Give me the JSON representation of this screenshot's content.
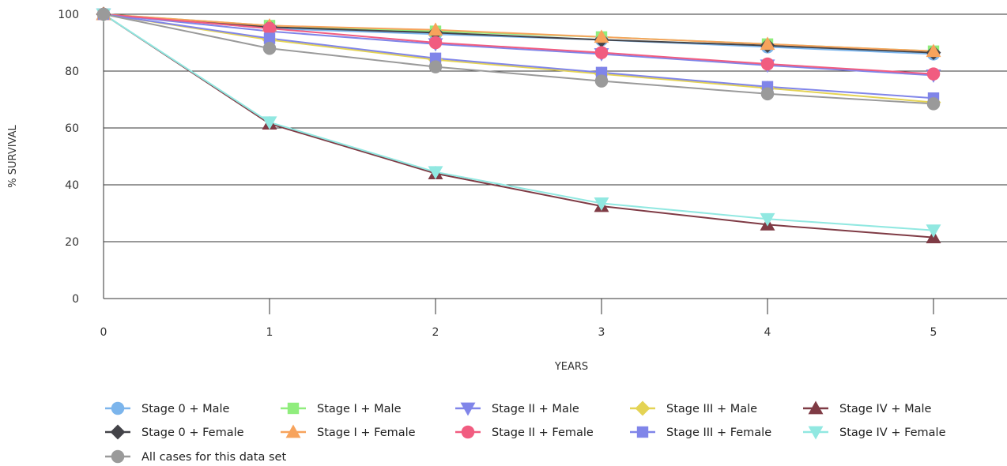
{
  "chart_data": {
    "type": "line",
    "xlabel": "YEARS",
    "ylabel": "% SURVIVAL",
    "xlim": [
      0,
      5.45
    ],
    "ylim": [
      0,
      100
    ],
    "x": [
      0,
      1,
      2,
      3,
      4,
      5
    ],
    "x_ticks": [
      "0",
      "1",
      "2",
      "3",
      "4",
      "5"
    ],
    "y_ticks": [
      "0",
      "20",
      "40",
      "60",
      "80",
      "100"
    ],
    "grid": "horizontal",
    "legend_position": "bottom",
    "series": [
      {
        "name": "Stage 0 + Male",
        "color": "#7cb5ec",
        "marker": "circle",
        "values": [
          100,
          95,
          93,
          91,
          88.5,
          86
        ]
      },
      {
        "name": "Stage I + Male",
        "color": "#90ed7d",
        "marker": "square",
        "values": [
          100,
          96,
          94,
          92,
          89.5,
          87
        ]
      },
      {
        "name": "Stage II + Male",
        "color": "#8085e9",
        "marker": "triangle-down",
        "values": [
          100,
          94,
          89.5,
          86,
          82,
          78.5
        ]
      },
      {
        "name": "Stage III + Male",
        "color": "#e4d354",
        "marker": "diamond",
        "values": [
          100,
          91,
          84,
          79,
          74,
          69
        ]
      },
      {
        "name": "Stage IV + Male",
        "color": "#7f3b45",
        "marker": "triangle",
        "values": [
          100,
          61.5,
          44,
          32.5,
          26,
          21.5
        ]
      },
      {
        "name": "Stage 0 + Female",
        "color": "#434348",
        "marker": "diamond",
        "values": [
          100,
          95.5,
          93.5,
          91,
          89,
          86.5
        ]
      },
      {
        "name": "Stage I + Female",
        "color": "#f7a35c",
        "marker": "triangle",
        "values": [
          100,
          96,
          94.5,
          92,
          89.5,
          87
        ]
      },
      {
        "name": "Stage II + Female",
        "color": "#f15c80",
        "marker": "circle",
        "values": [
          100,
          95,
          90,
          86.5,
          82.5,
          79
        ]
      },
      {
        "name": "Stage III + Female",
        "color": "#8085e9",
        "marker": "square",
        "values": [
          100,
          91.5,
          84.5,
          79.5,
          74.5,
          70.5
        ]
      },
      {
        "name": "Stage IV + Female",
        "color": "#91e8e1",
        "marker": "triangle-down",
        "values": [
          100,
          62,
          44.5,
          33.5,
          28,
          24
        ]
      },
      {
        "name": "All cases for this data set",
        "color": "#9a9a9a",
        "marker": "circle",
        "values": [
          100,
          88,
          81.5,
          76.5,
          72,
          68.5
        ]
      }
    ]
  }
}
